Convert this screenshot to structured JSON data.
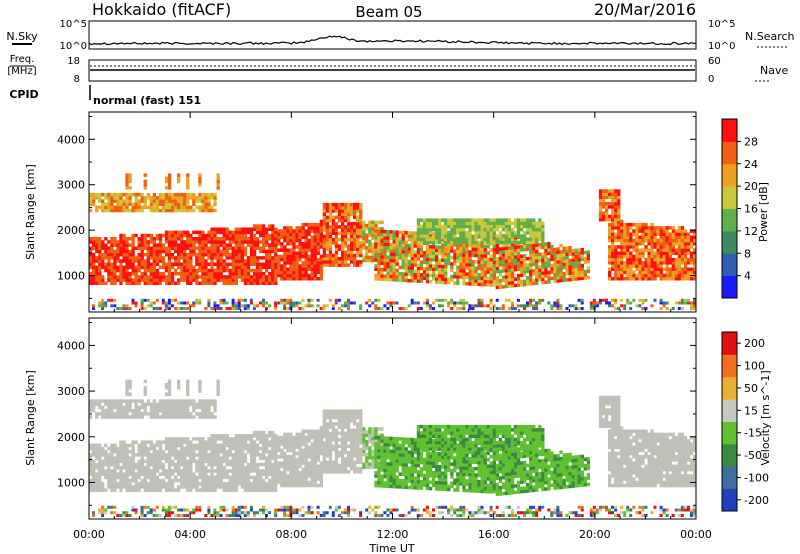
{
  "header": {
    "station": "Hokkaido (fitACF)",
    "beam": "Beam 05",
    "date": "20/Mar/2016"
  },
  "top_panels": {
    "nsky_label": "N.Sky",
    "nsearch_label": "N.Search",
    "nsky_ticks": [
      "10^5",
      "10^0"
    ],
    "nsearch_ticks": [
      "10^5",
      "10^0"
    ],
    "freq_label": "Freq.",
    "freq_unit": "[MHz]",
    "freq_ticks": [
      "18",
      "8"
    ],
    "nave_label": "Nave",
    "nave_ticks": [
      "60",
      "0"
    ],
    "cpid_label": "CPID",
    "cpid_value": "normal (fast) 151"
  },
  "chart_data": [
    {
      "type": "heatmap",
      "parameter": "power",
      "ylabel": "Slant Range [km]",
      "y_ticks": [
        "1000",
        "2000",
        "3000",
        "4000"
      ],
      "ylim": [
        200,
        4600
      ],
      "colorbar_label": "Power [dB]",
      "colorbar_ticks": [
        "4",
        "8",
        "12",
        "16",
        "20",
        "24",
        "28"
      ],
      "colorbar_colors": [
        "#1a1aff",
        "#2f5fb5",
        "#3c8a60",
        "#5fb04a",
        "#c8c83a",
        "#f0a020",
        "#f06010",
        "#ff1010"
      ]
    },
    {
      "type": "heatmap",
      "parameter": "velocity",
      "ylabel": "Slant Range [km]",
      "y_ticks": [
        "1000",
        "2000",
        "3000",
        "4000"
      ],
      "ylim": [
        200,
        4600
      ],
      "colorbar_label": "Velocity [m s^-1]",
      "colorbar_ticks": [
        "200",
        "100",
        "50",
        "15",
        "-15",
        "-50",
        "-100",
        "-200"
      ],
      "colorbar_colors": [
        "#2040c0",
        "#3e6ea0",
        "#3a8a40",
        "#60c030",
        "#c8c8c0",
        "#e8b030",
        "#f07020",
        "#e01010"
      ]
    }
  ],
  "x_axis": {
    "ticks": [
      "00:00",
      "04:00",
      "08:00",
      "12:00",
      "16:00",
      "20:00",
      "00:00"
    ],
    "xlabel": "Time UT",
    "xlim_hours": [
      0,
      24
    ]
  },
  "colors": {
    "ground_scatter": "#c0c0b8",
    "axis": "#000000"
  }
}
